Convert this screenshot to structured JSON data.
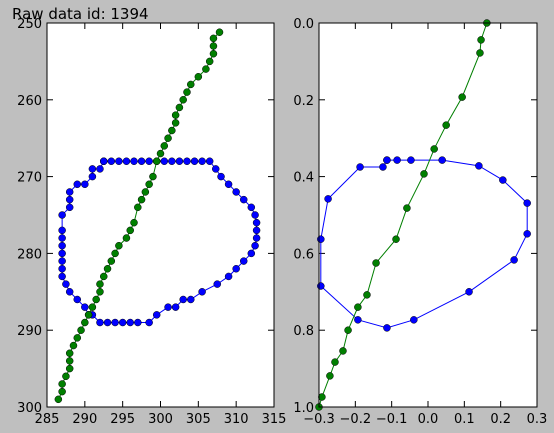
{
  "title": "Raw data id: 1394",
  "chart_data": [
    {
      "type": "line",
      "xlim": [
        285,
        315
      ],
      "xticks": [
        285,
        290,
        295,
        300,
        305,
        310,
        315
      ],
      "ylim": [
        300,
        250
      ],
      "yticks": [
        250,
        260,
        270,
        280,
        290,
        300
      ],
      "series": [
        {
          "color": "#0000ff",
          "x": [
            292.5,
            293.5,
            294.5,
            295.5,
            296.5,
            297.5,
            298.5,
            299.5,
            300.5,
            301.5,
            302.5,
            303.5,
            304.5,
            305.5,
            306.5,
            307.3,
            308,
            309,
            310,
            311,
            312,
            312.5,
            312.7,
            312.7,
            312.7,
            312.5,
            312,
            311,
            310,
            309,
            307.5,
            305.5,
            304,
            303,
            302,
            301,
            299.5,
            298.5,
            297,
            296,
            295,
            294,
            293,
            292,
            291,
            290.5,
            290,
            289,
            288,
            287.5,
            287,
            287,
            287,
            287,
            287,
            287,
            287,
            287,
            288,
            288,
            288,
            289,
            290,
            291,
            291,
            292,
            292.5
          ],
          "y": [
            268,
            268,
            268,
            268,
            268,
            268,
            268,
            268,
            268,
            268,
            268,
            268,
            268,
            268,
            268,
            269,
            270,
            271,
            272,
            273,
            274,
            275,
            276,
            277,
            278,
            279,
            280,
            281,
            282,
            283,
            284,
            285,
            286,
            286,
            287,
            287,
            288,
            289,
            289,
            289,
            289,
            289,
            289,
            289,
            288,
            288,
            287,
            286,
            285,
            284,
            283,
            282,
            281,
            280,
            279,
            278,
            277,
            275,
            274,
            273,
            272,
            271,
            271,
            270,
            269,
            269,
            268
          ]
        },
        {
          "color": "#007f00",
          "x": [
            307.8,
            307,
            307,
            307,
            306.5,
            306,
            305,
            304,
            303.5,
            303,
            302.5,
            302,
            302,
            301.5,
            301,
            300.5,
            300,
            299.5,
            299,
            298.5,
            298,
            297.5,
            297,
            296.5,
            296,
            295.5,
            294.5,
            294,
            293.5,
            293,
            292.5,
            292,
            292,
            291.5,
            291,
            290.5,
            290,
            289.5,
            289,
            288.5,
            288,
            288,
            288,
            287.5,
            287,
            287,
            286.5
          ],
          "y": [
            251.2,
            252,
            253,
            254,
            255,
            256,
            257,
            258,
            259,
            260,
            261,
            262,
            263,
            264,
            265,
            266,
            267,
            268,
            270,
            271,
            272,
            273,
            274,
            276,
            277,
            278,
            279,
            280,
            281,
            282,
            283,
            284,
            285,
            286,
            287,
            288,
            289,
            290,
            291,
            292,
            293,
            294,
            295,
            296,
            297,
            298,
            299
          ]
        }
      ]
    },
    {
      "type": "line",
      "xlim": [
        -0.3,
        0.3
      ],
      "xticks": [
        {
          "value": -0.3,
          "label": "−0.3"
        },
        {
          "value": -0.2,
          "label": "−0.2"
        },
        {
          "value": -0.1,
          "label": "−0.1"
        },
        {
          "value": 0,
          "label": "0.0"
        },
        0.1,
        0.2,
        0.3
      ],
      "ylim": [
        1,
        0
      ],
      "yticks": [
        {
          "value": 0,
          "label": "0.0"
        },
        0.2,
        0.4,
        0.6,
        0.8,
        {
          "value": 1,
          "label": "1.0"
        }
      ],
      "series": [
        {
          "color": "#0000ff",
          "x": [
            -0.113,
            -0.085,
            -0.047,
            0.039,
            0.14,
            0.206,
            0.273,
            0.273,
            0.237,
            0.113,
            -0.039,
            -0.113,
            -0.193,
            -0.295,
            -0.295,
            -0.275,
            -0.187,
            -0.124,
            -0.113
          ],
          "y": [
            0.357,
            0.357,
            0.357,
            0.357,
            0.372,
            0.409,
            0.469,
            0.549,
            0.617,
            0.7,
            0.773,
            0.794,
            0.773,
            0.685,
            0.563,
            0.458,
            0.375,
            0.375,
            0.357
          ]
        },
        {
          "color": "#007f00",
          "x": [
            0.162,
            0.146,
            0.143,
            0.094,
            0.05,
            0.017,
            -0.011,
            -0.058,
            -0.088,
            -0.143,
            -0.168,
            -0.193,
            -0.22,
            -0.234,
            -0.256,
            -0.27,
            -0.292,
            -0.3
          ],
          "y": [
            0.0,
            0.044,
            0.078,
            0.193,
            0.266,
            0.328,
            0.393,
            0.482,
            0.563,
            0.625,
            0.708,
            0.74,
            0.8,
            0.854,
            0.883,
            0.919,
            0.974,
            1.0
          ]
        }
      ]
    }
  ]
}
